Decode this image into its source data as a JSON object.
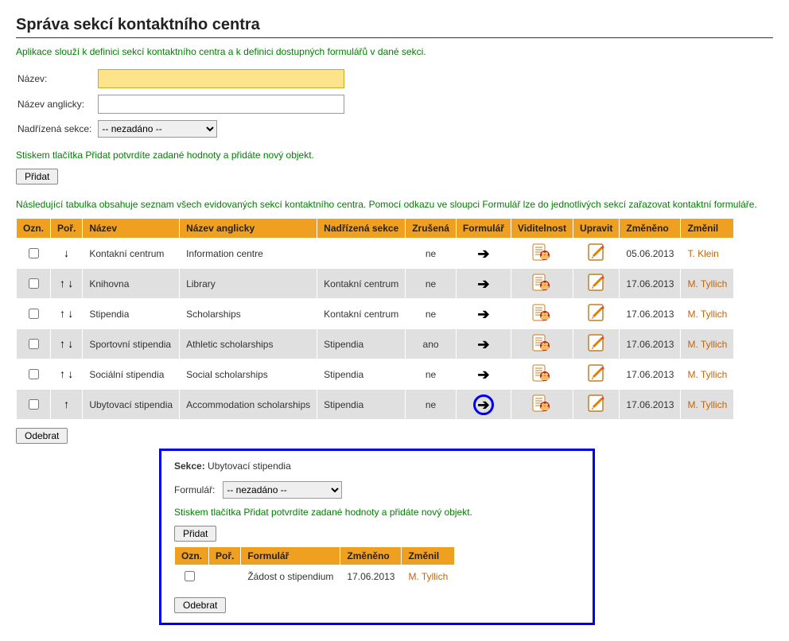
{
  "colors": {
    "header_bg": "#f0a020",
    "row_even": "#e0e0e0",
    "row_odd": "#ffffff",
    "green_text": "#008000",
    "user_link": "#c0660b",
    "highlight_input_bg": "#fde38a",
    "detail_border": "#0000ee"
  },
  "title": "Správa sekcí kontaktního centra",
  "intro": "Aplikace slouží k definici sekcí kontaktního centra a k definici dostupných formulářů v dané sekci.",
  "form": {
    "name_label": "Název:",
    "name_en_label": "Název anglicky:",
    "parent_label": "Nadřízená sekce:",
    "parent_selected": "-- nezadáno --",
    "confirm_text": "Stiskem tlačítka Přidat potvrdíte zadané hodnoty a přidáte nový objekt.",
    "add_button": "Přidat"
  },
  "list_intro": "Následující tabulka obsahuje seznam všech evidovaných sekcí kontaktního centra. Pomocí odkazu ve sloupci Formulář lze do jednotlivých sekcí zařazovat kontaktní formuláře.",
  "columns": {
    "ozn": "Ozn.",
    "por": "Poř.",
    "nazev": "Název",
    "nazev_en": "Název anglicky",
    "parent": "Nadřízená sekce",
    "cancelled": "Zrušená",
    "form": "Formulář",
    "vis": "Viditelnost",
    "edit": "Upravit",
    "changed": "Změněno",
    "changed_by": "Změnil"
  },
  "rows": [
    {
      "up": false,
      "down": true,
      "name": "Kontakní centrum",
      "name_en": "Information centre",
      "parent": "",
      "cancelled": "ne",
      "changed": "05.06.2013",
      "by": "T. Klein",
      "highlight_arrow": false
    },
    {
      "up": true,
      "down": true,
      "name": "Knihovna",
      "name_en": "Library",
      "parent": "Kontakní centrum",
      "cancelled": "ne",
      "changed": "17.06.2013",
      "by": "M. Tyllich",
      "highlight_arrow": false
    },
    {
      "up": true,
      "down": true,
      "name": "Stipendia",
      "name_en": "Scholarships",
      "parent": "Kontakní centrum",
      "cancelled": "ne",
      "changed": "17.06.2013",
      "by": "M. Tyllich",
      "highlight_arrow": false
    },
    {
      "up": true,
      "down": true,
      "name": "Sportovní stipendia",
      "name_en": "Athletic scholarships",
      "parent": "Stipendia",
      "cancelled": "ano",
      "changed": "17.06.2013",
      "by": "M. Tyllich",
      "highlight_arrow": false
    },
    {
      "up": true,
      "down": true,
      "name": "Sociální stipendia",
      "name_en": "Social scholarships",
      "parent": "Stipendia",
      "cancelled": "ne",
      "changed": "17.06.2013",
      "by": "M. Tyllich",
      "highlight_arrow": false
    },
    {
      "up": true,
      "down": false,
      "name": "Ubytovací stipendia",
      "name_en": "Accommodation scholarships",
      "parent": "Stipendia",
      "cancelled": "ne",
      "changed": "17.06.2013",
      "by": "M. Tyllich",
      "highlight_arrow": true
    }
  ],
  "remove_button": "Odebrat",
  "detail": {
    "section_label": "Sekce:",
    "section_value": "Ubytovací stipendia",
    "form_label": "Formulář:",
    "form_selected": "-- nezadáno --",
    "confirm_text": "Stiskem tlačítka Přidat potvrdíte zadané hodnoty a přidáte nový objekt.",
    "add_button": "Přidat",
    "columns": {
      "ozn": "Ozn.",
      "por": "Poř.",
      "form": "Formulář",
      "changed": "Změněno",
      "by": "Změnil"
    },
    "rows": [
      {
        "name": "Žádost o stipendium",
        "changed": "17.06.2013",
        "by": "M. Tyllich"
      }
    ],
    "remove_button": "Odebrat"
  }
}
